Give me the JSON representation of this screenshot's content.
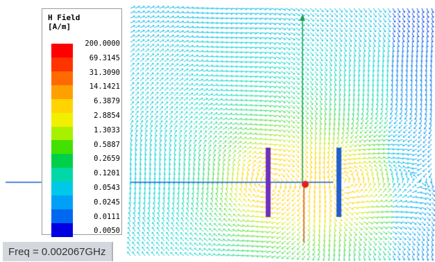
{
  "legend": {
    "title_line1": "H Field",
    "title_line2": "[A/m]",
    "values": [
      "200.0000",
      "69.3145",
      "31.3090",
      "14.1421",
      "6.3879",
      "2.8854",
      "1.3033",
      "0.5887",
      "0.2659",
      "0.1201",
      "0.0543",
      "0.0245",
      "0.0111",
      "0.0050"
    ],
    "colors": [
      "#ff0000",
      "#ff3300",
      "#ff6a00",
      "#ffa000",
      "#ffd400",
      "#f0f000",
      "#a8f000",
      "#44e000",
      "#00d048",
      "#00d8a8",
      "#00c8e8",
      "#00a0f8",
      "#0068f0",
      "#0000e0"
    ]
  },
  "status": {
    "frequency": "Freq = 0.002067GHz"
  },
  "scene": {
    "arrow_color_low": "#00c8e8",
    "arrow_color_high": "#ffd400",
    "axis_x_color": "#1a5fd0",
    "axis_y_color": "#18a050",
    "axis_z_color": "#e05020",
    "conductor_left_color": "#7030c0",
    "conductor_right_color": "#2060d0",
    "origin_marker_color": "#e02020"
  }
}
